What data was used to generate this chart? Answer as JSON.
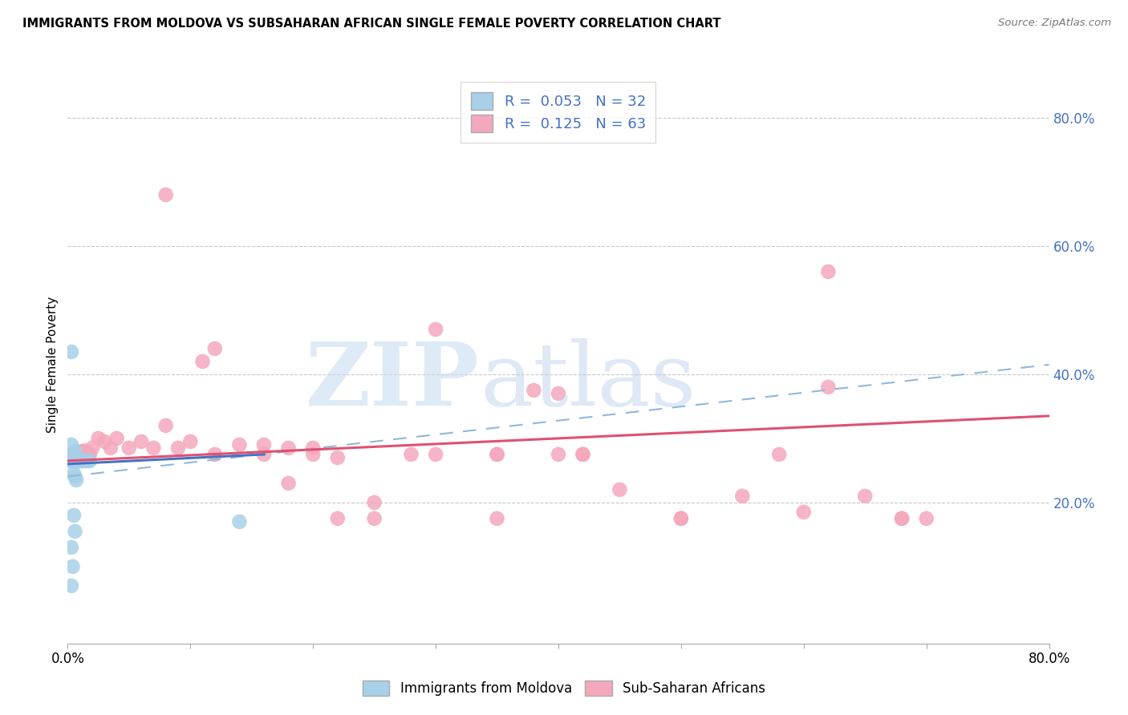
{
  "title": "IMMIGRANTS FROM MOLDOVA VS SUBSAHARAN AFRICAN SINGLE FEMALE POVERTY CORRELATION CHART",
  "source": "Source: ZipAtlas.com",
  "ylabel": "Single Female Poverty",
  "ytick_labels": [
    "20.0%",
    "40.0%",
    "60.0%",
    "80.0%"
  ],
  "ytick_values": [
    0.2,
    0.4,
    0.6,
    0.8
  ],
  "xtick_labels": [
    "0.0%",
    "",
    "",
    "",
    "",
    "",
    "",
    "",
    "80.0%"
  ],
  "xlim": [
    0.0,
    0.8
  ],
  "ylim": [
    -0.02,
    0.85
  ],
  "legend_label1": "Immigrants from Moldova",
  "legend_label2": "Sub-Saharan Africans",
  "r1": 0.053,
  "n1": 32,
  "r2": 0.125,
  "n2": 63,
  "color_blue": "#A8D0E8",
  "color_pink": "#F4A8BC",
  "color_blue_line": "#4472C4",
  "color_pink_line": "#E05070",
  "color_dashed": "#90B8D8",
  "moldova_x": [
    0.002,
    0.003,
    0.004,
    0.004,
    0.005,
    0.005,
    0.006,
    0.006,
    0.006,
    0.007,
    0.007,
    0.007,
    0.007,
    0.008,
    0.008,
    0.008,
    0.009,
    0.009,
    0.01,
    0.01,
    0.011,
    0.012,
    0.013,
    0.014,
    0.015,
    0.016,
    0.018,
    0.005,
    0.006,
    0.007,
    0.14,
    0.003
  ],
  "moldova_y": [
    0.265,
    0.265,
    0.265,
    0.275,
    0.265,
    0.265,
    0.265,
    0.265,
    0.28,
    0.265,
    0.265,
    0.265,
    0.265,
    0.265,
    0.265,
    0.265,
    0.265,
    0.265,
    0.265,
    0.265,
    0.265,
    0.265,
    0.265,
    0.265,
    0.265,
    0.265,
    0.265,
    0.245,
    0.24,
    0.235,
    0.17,
    0.435
  ],
  "moldova_y_outliers": [
    0.29,
    0.18,
    0.155,
    0.13,
    0.1,
    0.07
  ],
  "moldova_x_outliers": [
    0.003,
    0.005,
    0.006,
    0.003,
    0.004,
    0.003
  ],
  "subsaharan_x": [
    0.003,
    0.005,
    0.007,
    0.008,
    0.009,
    0.01,
    0.011,
    0.012,
    0.013,
    0.014,
    0.015,
    0.016,
    0.017,
    0.018,
    0.02,
    0.025,
    0.03,
    0.035,
    0.04,
    0.05,
    0.06,
    0.07,
    0.08,
    0.09,
    0.1,
    0.11,
    0.12,
    0.14,
    0.16,
    0.18,
    0.2,
    0.22,
    0.25,
    0.28,
    0.3,
    0.35,
    0.38,
    0.4,
    0.42,
    0.45,
    0.5,
    0.55,
    0.6,
    0.62,
    0.65,
    0.68,
    0.7,
    0.3,
    0.35,
    0.4,
    0.5,
    0.18,
    0.22,
    0.08,
    0.12,
    0.16,
    0.2,
    0.25,
    0.35,
    0.42,
    0.58,
    0.62,
    0.68
  ],
  "subsaharan_y": [
    0.27,
    0.27,
    0.27,
    0.27,
    0.275,
    0.275,
    0.275,
    0.28,
    0.28,
    0.28,
    0.28,
    0.275,
    0.275,
    0.275,
    0.285,
    0.3,
    0.295,
    0.285,
    0.3,
    0.285,
    0.295,
    0.285,
    0.32,
    0.285,
    0.295,
    0.42,
    0.44,
    0.29,
    0.29,
    0.285,
    0.285,
    0.27,
    0.2,
    0.275,
    0.275,
    0.275,
    0.375,
    0.275,
    0.275,
    0.22,
    0.175,
    0.21,
    0.185,
    0.56,
    0.21,
    0.175,
    0.175,
    0.47,
    0.275,
    0.37,
    0.175,
    0.23,
    0.175,
    0.68,
    0.275,
    0.275,
    0.275,
    0.175,
    0.175,
    0.275,
    0.275,
    0.38,
    0.175
  ],
  "dashed_line_x": [
    0.08,
    0.8
  ],
  "dashed_line_y": [
    0.258,
    0.415
  ],
  "pink_line_x": [
    0.0,
    0.8
  ],
  "pink_line_y_start": 0.265,
  "pink_line_y_end": 0.335,
  "blue_line_x": [
    0.0,
    0.16
  ],
  "blue_line_y_start": 0.26,
  "blue_line_y_end": 0.275
}
